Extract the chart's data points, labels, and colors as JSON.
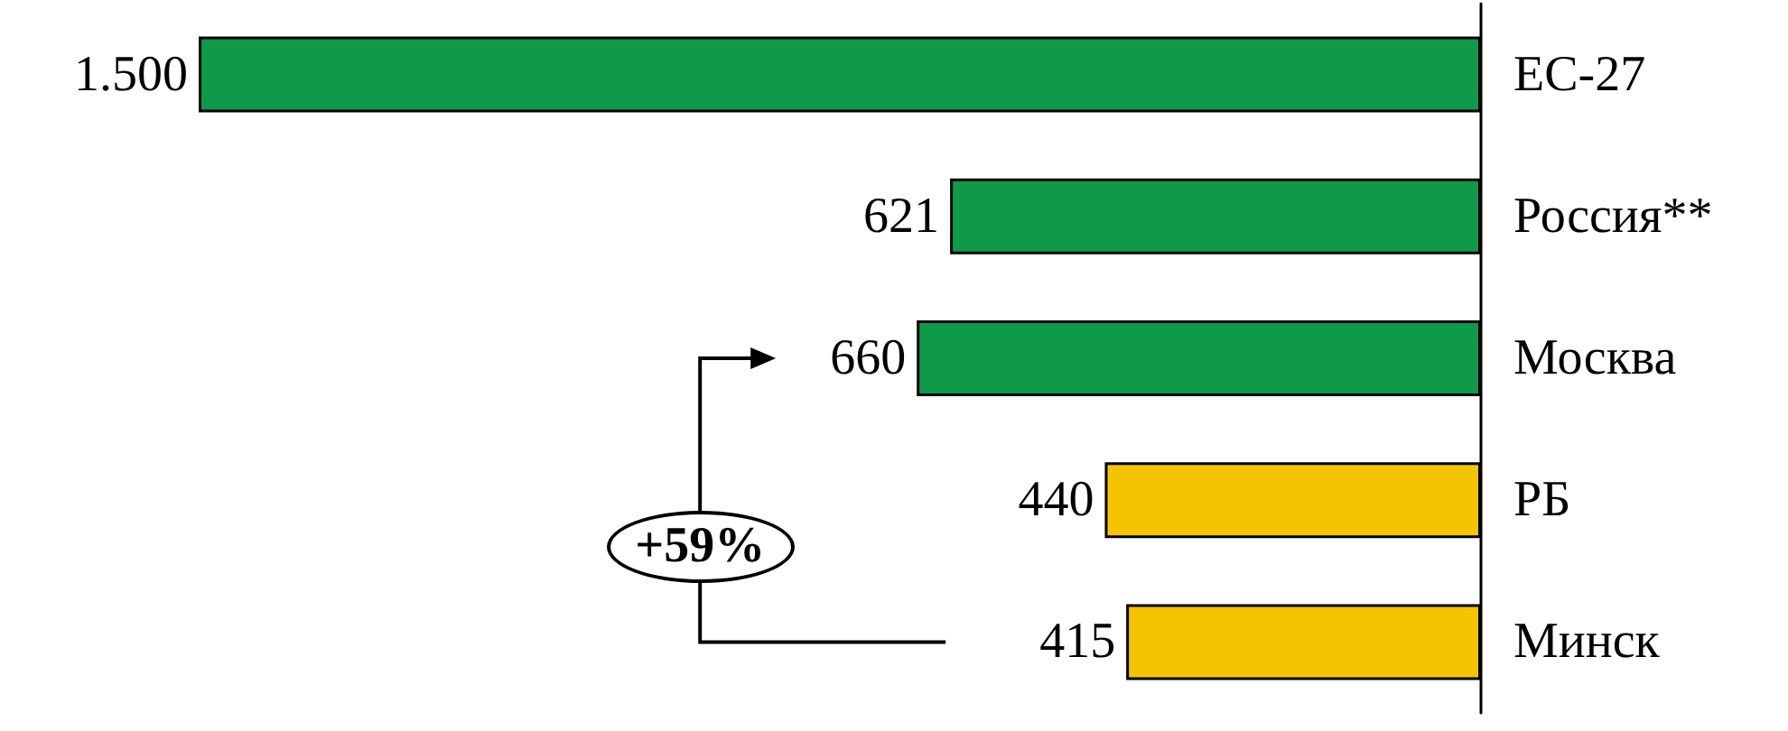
{
  "chart_data": {
    "type": "bar",
    "orientation": "horizontal",
    "categories": [
      "ЕС-27",
      "Россия**",
      "Москва",
      "РБ",
      "Минск"
    ],
    "values": [
      1500,
      621,
      660,
      440,
      415
    ],
    "colors": [
      "#0e9a48",
      "#0e9a48",
      "#0e9a48",
      "#f5c400",
      "#f5c400"
    ],
    "value_labels": [
      "1.500",
      "621",
      "660",
      "440",
      "415"
    ],
    "annotations": [
      "+59%"
    ]
  }
}
